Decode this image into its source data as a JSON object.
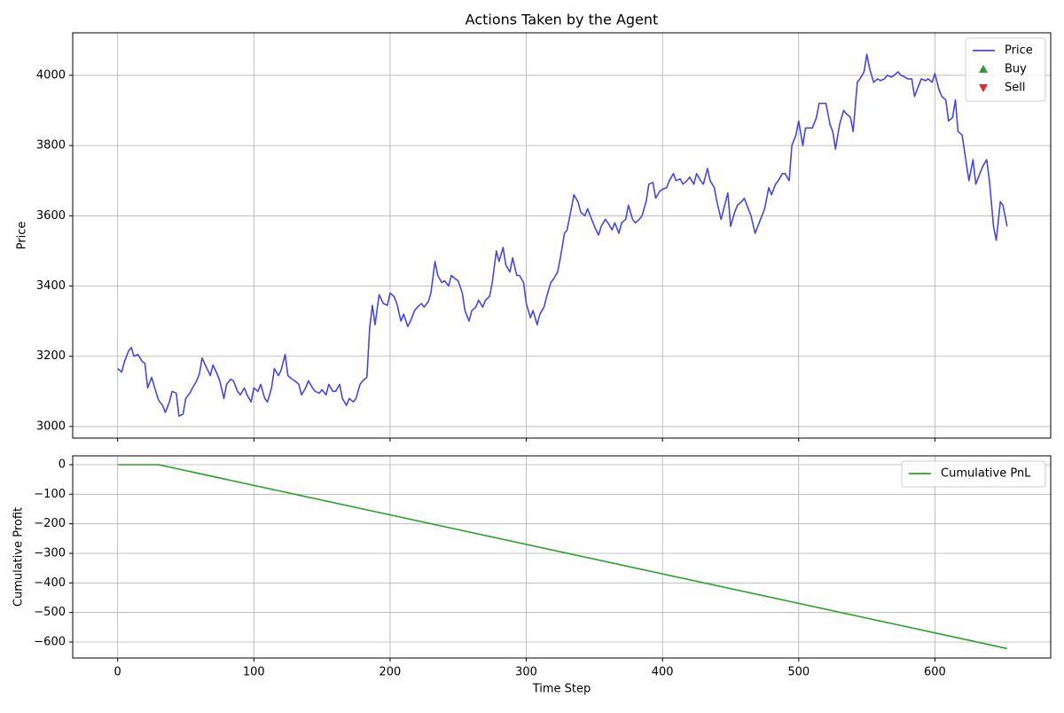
{
  "chart_data": [
    {
      "type": "line",
      "title": "Actions Taken by the Agent",
      "ylabel": "Price",
      "xlim": [
        -33,
        685
      ],
      "ylim": [
        2967,
        4121
      ],
      "xticks": [
        0,
        100,
        200,
        300,
        400,
        500,
        600
      ],
      "xticklabels": false,
      "yticks": [
        3000,
        3200,
        3400,
        3600,
        3800,
        4000
      ],
      "grid": true,
      "legend": "upper right",
      "series": [
        {
          "name": "Price",
          "color": "#4747e0",
          "marker": "line",
          "x": [
            0,
            3,
            5,
            8,
            10,
            12,
            15,
            18,
            20,
            22,
            25,
            28,
            30,
            33,
            35,
            38,
            40,
            43,
            45,
            48,
            50,
            53,
            55,
            58,
            60,
            62,
            65,
            68,
            70,
            73,
            75,
            78,
            80,
            83,
            85,
            88,
            90,
            93,
            95,
            98,
            100,
            103,
            105,
            108,
            110,
            113,
            115,
            118,
            120,
            123,
            125,
            128,
            130,
            133,
            135,
            138,
            140,
            143,
            145,
            148,
            150,
            153,
            155,
            158,
            160,
            163,
            165,
            168,
            170,
            173,
            175,
            178,
            180,
            183,
            185,
            187,
            189,
            192,
            195,
            198,
            200,
            203,
            205,
            208,
            210,
            213,
            215,
            218,
            220,
            223,
            225,
            228,
            230,
            233,
            235,
            238,
            240,
            243,
            245,
            248,
            250,
            253,
            255,
            258,
            260,
            263,
            265,
            268,
            270,
            273,
            275,
            278,
            280,
            283,
            285,
            288,
            290,
            293,
            295,
            298,
            300,
            303,
            305,
            308,
            310,
            313,
            315,
            318,
            320,
            323,
            325,
            328,
            330,
            333,
            335,
            338,
            340,
            343,
            345,
            348,
            350,
            353,
            355,
            358,
            360,
            363,
            365,
            368,
            370,
            373,
            375,
            378,
            380,
            383,
            385,
            388,
            390,
            393,
            395,
            398,
            400,
            403,
            405,
            408,
            410,
            413,
            415,
            418,
            420,
            423,
            425,
            428,
            430,
            433,
            435,
            438,
            440,
            443,
            445,
            448,
            450,
            453,
            455,
            458,
            460,
            463,
            465,
            468,
            470,
            473,
            475,
            478,
            480,
            483,
            485,
            488,
            490,
            493,
            495,
            498,
            500,
            503,
            505,
            508,
            510,
            513,
            515,
            518,
            520,
            523,
            525,
            527,
            530,
            533,
            535,
            538,
            540,
            543,
            545,
            548,
            550,
            552,
            555,
            558,
            560,
            563,
            565,
            568,
            570,
            573,
            575,
            578,
            580,
            583,
            585,
            588,
            590,
            593,
            595,
            598,
            600,
            603,
            605,
            608,
            610,
            613,
            615,
            617,
            620,
            623,
            625,
            628,
            630,
            633,
            635,
            638,
            640,
            643,
            645,
            648,
            650,
            653
          ],
          "values": [
            3165,
            3155,
            3185,
            3215,
            3225,
            3200,
            3205,
            3185,
            3180,
            3110,
            3140,
            3100,
            3075,
            3060,
            3040,
            3070,
            3100,
            3095,
            3030,
            3035,
            3080,
            3095,
            3110,
            3130,
            3150,
            3195,
            3170,
            3145,
            3175,
            3150,
            3130,
            3080,
            3120,
            3135,
            3130,
            3100,
            3090,
            3110,
            3090,
            3070,
            3110,
            3100,
            3120,
            3080,
            3070,
            3110,
            3165,
            3145,
            3160,
            3205,
            3145,
            3135,
            3130,
            3120,
            3090,
            3110,
            3130,
            3110,
            3100,
            3095,
            3105,
            3090,
            3120,
            3100,
            3100,
            3120,
            3080,
            3060,
            3080,
            3070,
            3080,
            3120,
            3130,
            3140,
            3280,
            3345,
            3290,
            3375,
            3350,
            3345,
            3380,
            3370,
            3350,
            3300,
            3320,
            3285,
            3300,
            3330,
            3340,
            3350,
            3340,
            3355,
            3380,
            3470,
            3430,
            3410,
            3415,
            3400,
            3430,
            3420,
            3415,
            3380,
            3330,
            3300,
            3330,
            3340,
            3360,
            3340,
            3360,
            3370,
            3410,
            3500,
            3470,
            3510,
            3460,
            3440,
            3480,
            3430,
            3430,
            3410,
            3350,
            3310,
            3330,
            3290,
            3320,
            3340,
            3370,
            3410,
            3420,
            3440,
            3480,
            3550,
            3560,
            3620,
            3660,
            3640,
            3610,
            3600,
            3620,
            3590,
            3570,
            3545,
            3570,
            3590,
            3580,
            3560,
            3580,
            3550,
            3580,
            3590,
            3630,
            3590,
            3580,
            3590,
            3600,
            3640,
            3690,
            3695,
            3650,
            3670,
            3675,
            3680,
            3700,
            3720,
            3700,
            3705,
            3690,
            3700,
            3710,
            3690,
            3720,
            3700,
            3690,
            3735,
            3700,
            3680,
            3640,
            3590,
            3620,
            3665,
            3570,
            3610,
            3630,
            3640,
            3650,
            3620,
            3600,
            3550,
            3570,
            3600,
            3620,
            3680,
            3660,
            3690,
            3700,
            3720,
            3720,
            3700,
            3800,
            3830,
            3870,
            3800,
            3850,
            3850,
            3850,
            3880,
            3920,
            3920,
            3920,
            3860,
            3840,
            3790,
            3860,
            3900,
            3890,
            3880,
            3840,
            3980,
            3990,
            4010,
            4060,
            4020,
            3980,
            3990,
            3985,
            3990,
            4000,
            3995,
            4000,
            4010,
            4000,
            3995,
            3990,
            3990,
            3940,
            3970,
            3990,
            3985,
            3990,
            3980,
            4005,
            3960,
            3940,
            3930,
            3870,
            3880,
            3930,
            3840,
            3830,
            3750,
            3700,
            3760,
            3690,
            3720,
            3740,
            3760,
            3700,
            3570,
            3530,
            3640,
            3630,
            3570
          ]
        },
        {
          "name": "Buy",
          "color": "#2ca02c",
          "marker": "triangle-up",
          "x": [],
          "values": []
        },
        {
          "name": "Sell",
          "color": "#e8282a",
          "marker": "triangle-down",
          "x": [],
          "values": []
        }
      ]
    },
    {
      "type": "line",
      "ylabel": "Cumulative Profit",
      "xlabel": "Time Step",
      "xlim": [
        -33,
        685
      ],
      "ylim": [
        -654,
        30
      ],
      "xticks": [
        0,
        100,
        200,
        300,
        400,
        500,
        600
      ],
      "xticklabels": true,
      "yticks": [
        {
          "value": -600,
          "label": "−600"
        },
        {
          "value": -500,
          "label": "−500"
        },
        {
          "value": -400,
          "label": "−400"
        },
        {
          "value": -300,
          "label": "−300"
        },
        {
          "value": -200,
          "label": "−200"
        },
        {
          "value": -100,
          "label": "−100"
        },
        0
      ],
      "grid": true,
      "legend": "upper right",
      "series": [
        {
          "name": "Cumulative PnL",
          "color": "#2ca02c",
          "marker": "line",
          "x": [
            0,
            30,
            653
          ],
          "values": [
            0,
            0,
            -622
          ]
        }
      ]
    }
  ]
}
